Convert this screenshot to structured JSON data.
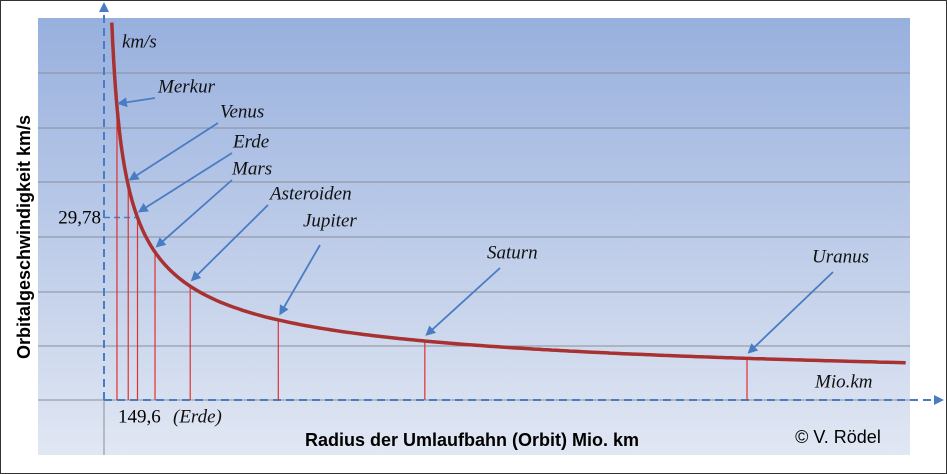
{
  "chart_data": {
    "type": "orbit",
    "y_label": "Orbitalgeschwindigkeit km/s",
    "x_label": "Radius der Umlaufbahn (Orbit) Mio. km",
    "y_unit": "km/s",
    "x_unit": "Mio.km",
    "copyright": "© V. Rödel",
    "earth_velocity": {
      "value": 29.78,
      "label": "29,78"
    },
    "earth_radius": {
      "value": 149.6,
      "label": "149,6"
    },
    "earth_note": "(Erde)",
    "xlim": [
      0,
      3600
    ],
    "ylim": [
      0,
      62
    ],
    "color": "#a83232",
    "planets": [
      {
        "name": "Merkur",
        "x": 57.9,
        "y": 47.4
      },
      {
        "name": "Venus",
        "x": 108.2,
        "y": 35.0
      },
      {
        "name": "Erde",
        "x": 149.6,
        "y": 29.78
      },
      {
        "name": "Mars",
        "x": 227.9,
        "y": 24.1
      },
      {
        "name": "Asteroiden",
        "x": 385,
        "y": 18.6
      },
      {
        "name": "Jupiter",
        "x": 778.5,
        "y": 13.1
      },
      {
        "name": "Saturn",
        "x": 1433,
        "y": 9.7
      },
      {
        "name": "Uranus",
        "x": 2872,
        "y": 6.8
      }
    ]
  }
}
